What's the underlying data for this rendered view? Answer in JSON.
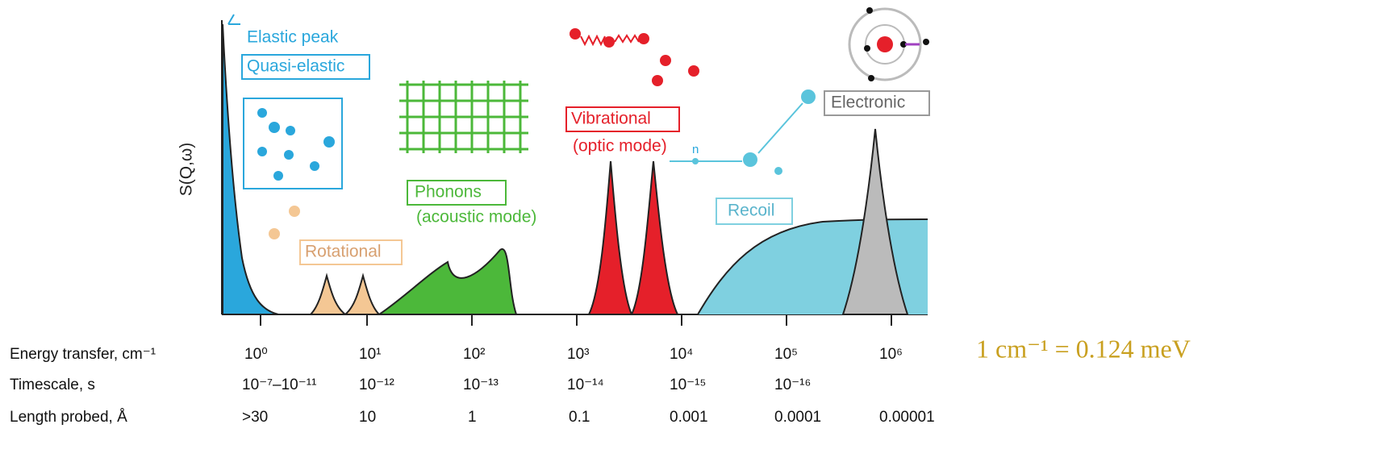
{
  "y_axis_label": "S(Q,ω)",
  "peaks": {
    "elastic": "Elastic peak",
    "quasi_elastic": "Quasi-elastic",
    "rotational": "Rotational",
    "phonons": "Phonons",
    "phonons_note": "(acoustic mode)",
    "vibrational": "Vibrational",
    "vibrational_note": "(optic mode)",
    "recoil": "Recoil",
    "electronic": "Electronic",
    "neutron": "n"
  },
  "scale_rows": [
    {
      "label": "Energy transfer, cm⁻¹",
      "ticks": [
        "10⁰",
        "10¹",
        "10²",
        "10³",
        "10⁴",
        "10⁵",
        "10⁶"
      ]
    },
    {
      "label": "Timescale, s",
      "ticks": [
        "10⁻⁷–10⁻¹¹",
        "10⁻¹²",
        "10⁻¹³",
        "10⁻¹⁴",
        "10⁻¹⁵",
        "10⁻¹⁶"
      ]
    },
    {
      "label": "Length probed, Å",
      "ticks": [
        ">30",
        "10",
        "1",
        "0.1",
        "0.001",
        "0.0001",
        "0.00001"
      ]
    }
  ],
  "conversion_note": "1 cm⁻¹ = 0.124 meV"
}
